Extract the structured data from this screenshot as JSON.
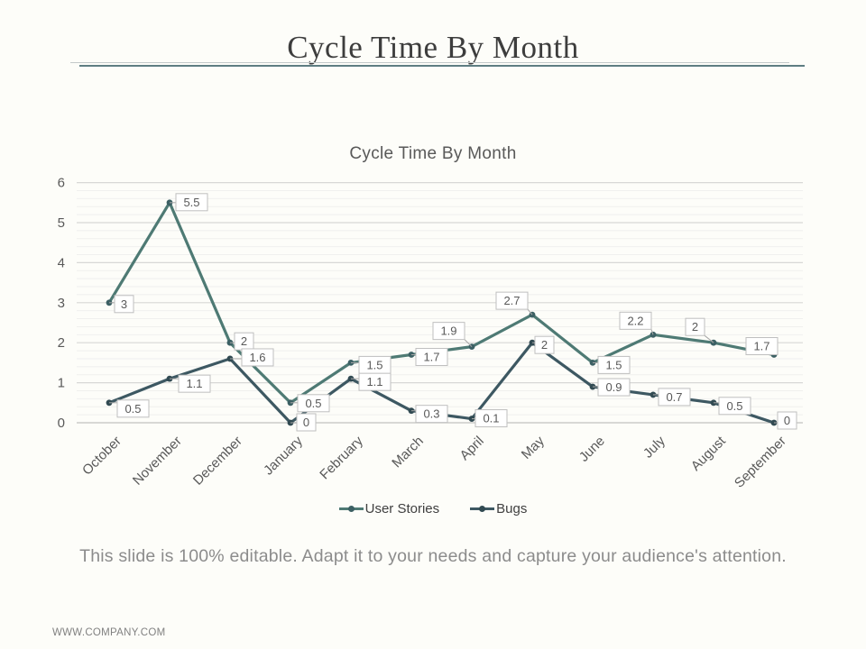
{
  "slide": {
    "title": "Cycle Time By Month",
    "caption": "This slide is 100% editable. Adapt it to your needs and capture your audience's attention.",
    "footer": "WWW.COMPANY.COM"
  },
  "colors": {
    "accent_rule": "#5e7d82",
    "gridline_minor": "#f0f0ee",
    "gridline_major": "#d8d8d6",
    "axis_line": "#c2c2c0",
    "label_text": "#595959",
    "label_box_border": "#bfbfbf",
    "label_leader": "#a6a6a6"
  },
  "chart_data": {
    "type": "line",
    "title": "Cycle Time By Month",
    "categories": [
      "October",
      "November",
      "December",
      "January",
      "February",
      "March",
      "April",
      "May",
      "June",
      "July",
      "August",
      "September"
    ],
    "series": [
      {
        "name": "User Stories",
        "color": "#4e7a74",
        "marker_color": "#3c6064",
        "values": [
          3,
          5.5,
          2,
          0.5,
          1.5,
          1.7,
          1.9,
          2.7,
          1.5,
          2.2,
          2,
          1.7
        ],
        "labels": [
          "3",
          "5.5",
          "2",
          "0.5",
          "1.5",
          "1.7",
          "1.9",
          "2.7",
          "1.5",
          "2.2",
          "2",
          "1.7"
        ],
        "label_offsets": [
          [
            6,
            -8
          ],
          [
            7,
            -10
          ],
          [
            5,
            -11
          ],
          [
            8,
            -9
          ],
          [
            9,
            -7
          ],
          [
            5,
            -7
          ],
          [
            -43,
            -27
          ],
          [
            -40,
            -25
          ],
          [
            6,
            -7
          ],
          [
            -37,
            -25
          ],
          [
            -31,
            -27
          ],
          [
            -31,
            -19
          ]
        ]
      },
      {
        "name": "Bugs",
        "color": "#3d5862",
        "marker_color": "#314a52",
        "values": [
          0.5,
          1.1,
          1.6,
          0,
          1.1,
          0.3,
          0.1,
          2,
          0.9,
          0.7,
          0.5,
          0
        ],
        "labels": [
          "0.5",
          "1.1",
          "1.6",
          "0",
          "1.1",
          "0.3",
          "0.1",
          "2",
          "0.9",
          "0.7",
          "0.5",
          "0"
        ],
        "label_offsets": [
          [
            9,
            -3
          ],
          [
            10,
            -4
          ],
          [
            13,
            -11
          ],
          [
            7,
            -10
          ],
          [
            9,
            -6
          ],
          [
            5,
            -6
          ],
          [
            4,
            -10
          ],
          [
            3,
            -7
          ],
          [
            6,
            -9
          ],
          [
            6,
            -7
          ],
          [
            6,
            -6
          ],
          [
            4,
            -12
          ]
        ]
      }
    ],
    "ylim": [
      0,
      6
    ],
    "y_ticks": [
      0,
      1,
      2,
      3,
      4,
      5,
      6
    ],
    "minor_grid_step": 0.2,
    "grid": true,
    "legend_position": "bottom",
    "xlabel": "",
    "ylabel": ""
  }
}
